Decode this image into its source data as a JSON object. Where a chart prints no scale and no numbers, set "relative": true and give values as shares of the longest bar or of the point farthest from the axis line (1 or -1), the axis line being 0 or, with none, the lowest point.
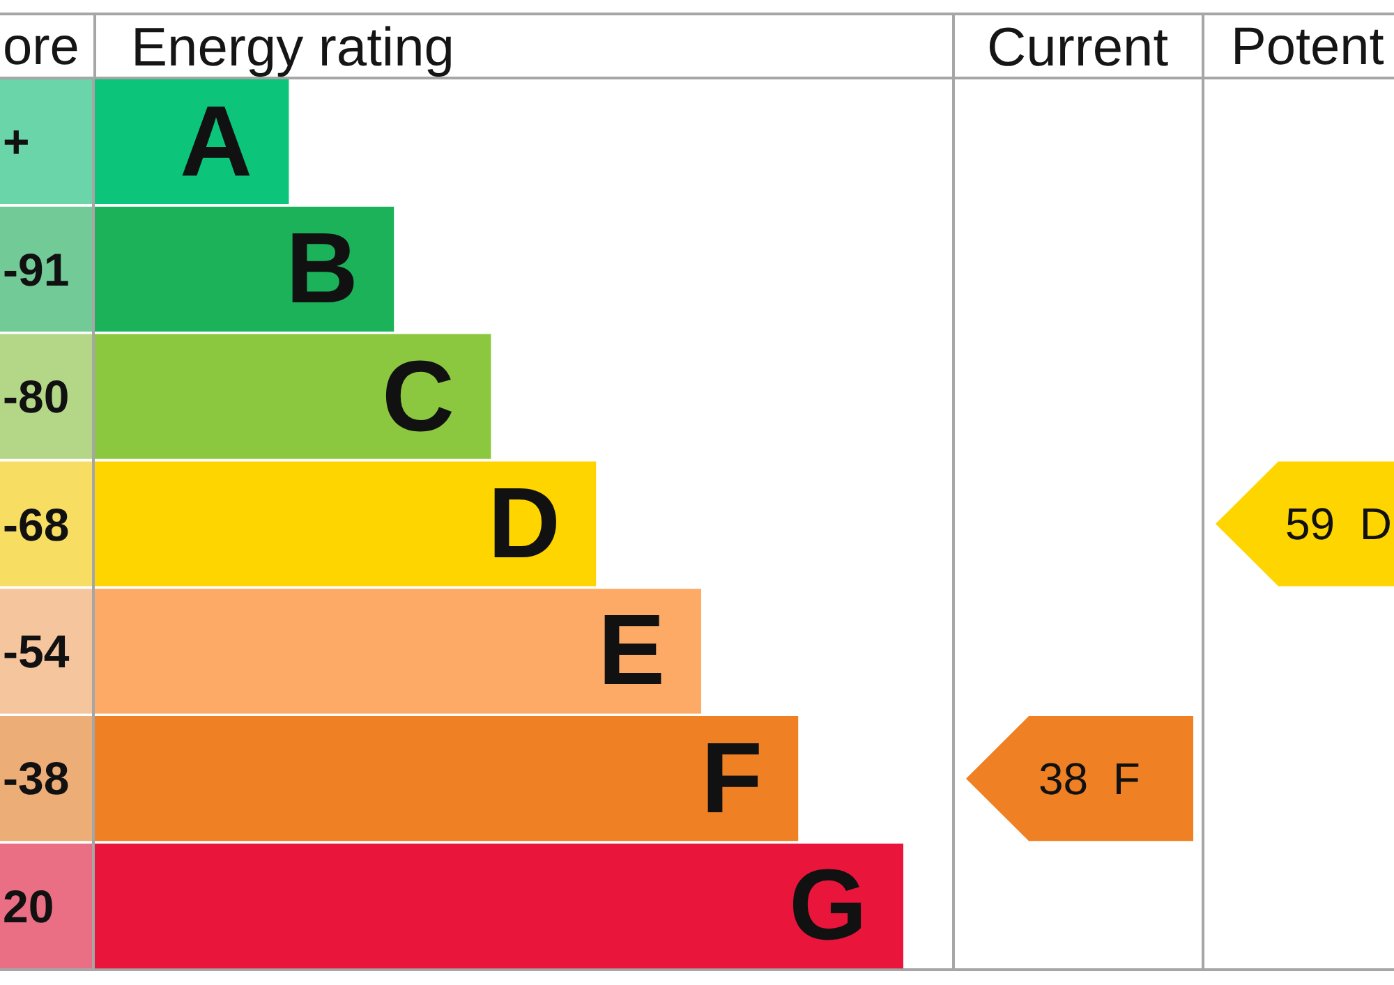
{
  "chart_data": {
    "type": "bar",
    "orientation": "horizontal",
    "relative": true,
    "categories": [
      "A",
      "B",
      "C",
      "D",
      "E",
      "F",
      "G"
    ],
    "values": [
      0.24,
      0.37,
      0.49,
      0.62,
      0.75,
      0.87,
      1
    ],
    "colors": [
      "#0cc57a",
      "#1bb25a",
      "#8cc83f",
      "#ffd500",
      "#fcaa65",
      "#ef8023",
      "#e9153b"
    ],
    "annotations": [
      "ore",
      "Energy rating",
      "Current",
      "Potent",
      "+",
      "-91",
      "-80",
      "-68",
      "-54",
      "-38",
      "20",
      "38  F",
      "59  D"
    ]
  }
}
